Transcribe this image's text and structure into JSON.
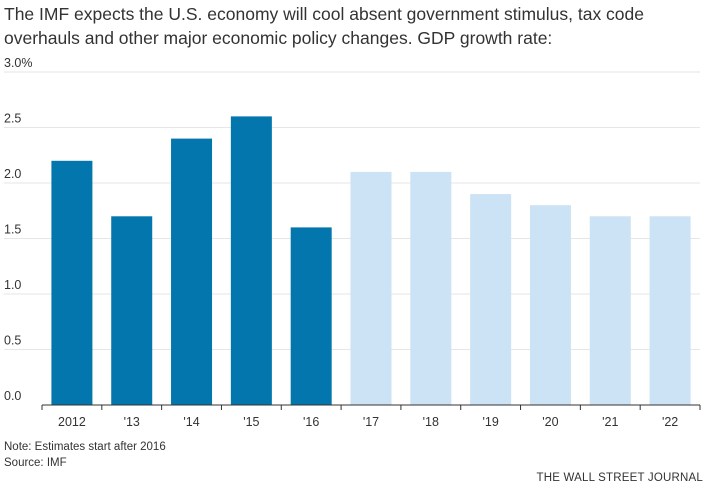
{
  "headline": "The IMF expects the U.S. economy will cool absent government stimulus, tax code overhauls and other major economic policy changes. GDP growth rate:",
  "chart_data": {
    "type": "bar",
    "title": "",
    "xlabel": "",
    "ylabel": "",
    "categories": [
      "2012",
      "'13",
      "'14",
      "'15",
      "'16",
      "'17",
      "'18",
      "'19",
      "'20",
      "'21",
      "'22"
    ],
    "values": [
      2.2,
      1.7,
      2.4,
      2.6,
      1.6,
      2.1,
      2.1,
      1.9,
      1.8,
      1.7,
      1.7
    ],
    "estimate": [
      false,
      false,
      false,
      false,
      false,
      true,
      true,
      true,
      true,
      true,
      true
    ],
    "ylim": [
      0,
      3.0
    ],
    "yticks": [
      0,
      0.5,
      1.0,
      1.5,
      2.0,
      2.5,
      3.0
    ],
    "ytick_labels": [
      "0.0",
      "0.5",
      "1.0",
      "1.5",
      "2.0",
      "2.5",
      "3.0%"
    ],
    "grid": true,
    "colors": {
      "actual": "#0276ad",
      "estimate": "#cce2f5",
      "grid": "#e6e6e6",
      "axis": "#333333"
    }
  },
  "note": "Note: Estimates start after 2016",
  "source": "Source: IMF",
  "credit": "THE WALL STREET JOURNAL"
}
